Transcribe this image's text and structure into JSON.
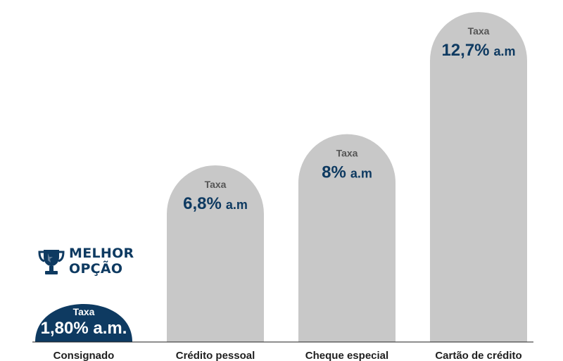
{
  "colors": {
    "highlight": "#0e3a61",
    "bar": "#c8c8c8",
    "label_small": "#555555",
    "value_text": "#0e3a61",
    "axis": "#1f1f1f"
  },
  "badge": {
    "icon": "trophy-icon",
    "line1": "MELHOR",
    "line2": "OPÇÃO"
  },
  "chart_data": {
    "type": "bar",
    "categories": [
      "Consignado",
      "Crédito pessoal",
      "Cheque especial",
      "Cartão de crédito"
    ],
    "values": [
      1.8,
      6.8,
      8,
      12.7
    ],
    "unit": "% a.m.",
    "bar_label_title": "Taxa",
    "bar_labels": [
      {
        "value_text": "1,80% a.m.",
        "unit": ""
      },
      {
        "value_text": "6,8%",
        "unit": "a.m"
      },
      {
        "value_text": "8%",
        "unit": "a.m"
      },
      {
        "value_text": "12,7%",
        "unit": "a.m"
      }
    ],
    "highlighted_index": 0,
    "ylim": [
      0,
      13
    ]
  }
}
